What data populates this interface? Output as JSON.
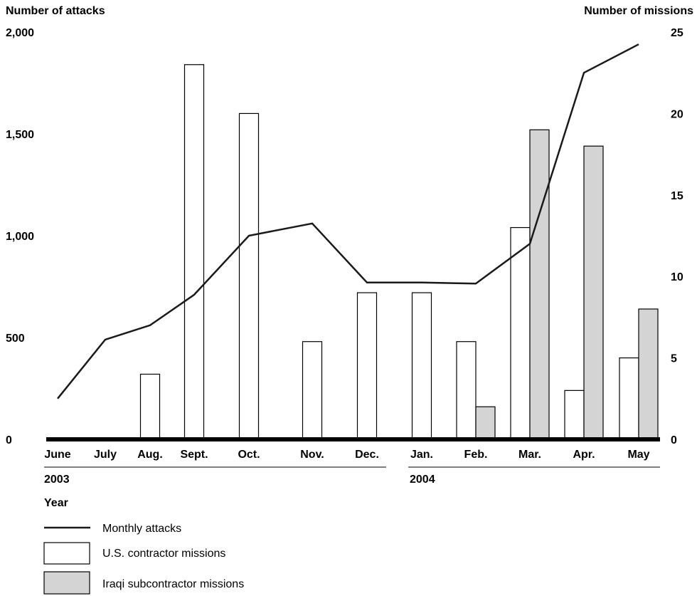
{
  "chart_data": {
    "type": "bar",
    "left_axis_title": "Number of attacks",
    "right_axis_title": "Number of missions",
    "left_ticks": [
      "0",
      "500",
      "1,000",
      "1,500",
      "2,000"
    ],
    "left_tick_values": [
      0,
      500,
      1000,
      1500,
      2000
    ],
    "right_ticks": [
      "0",
      "5",
      "10",
      "15",
      "20",
      "25"
    ],
    "right_tick_values": [
      0,
      5,
      10,
      15,
      20,
      25
    ],
    "ylim_left": [
      0,
      2000
    ],
    "ylim_right": [
      0,
      25
    ],
    "categories": [
      "June",
      "July",
      "Aug.",
      "Sept.",
      "Oct.",
      "Nov.",
      "Dec.",
      "Jan.",
      "Feb.",
      "Mar.",
      "Apr.",
      "May"
    ],
    "years": [
      "2003",
      "2004"
    ],
    "year_axis_label": "Year",
    "series": [
      {
        "name": "Monthly attacks",
        "kind": "line",
        "axis": "left",
        "values": [
          200,
          490,
          560,
          710,
          1000,
          1060,
          770,
          770,
          765,
          960,
          1800,
          1940
        ]
      },
      {
        "name": "U.S. contractor missions",
        "kind": "bar",
        "axis": "right",
        "values": [
          0,
          0,
          4,
          23,
          20,
          6,
          9,
          9,
          6,
          13,
          3,
          5
        ]
      },
      {
        "name": "Iraqi subcontractor missions",
        "kind": "bar",
        "axis": "right",
        "values": [
          0,
          0,
          0,
          0,
          0,
          0,
          0,
          0,
          2,
          19,
          18,
          8
        ]
      }
    ],
    "colors": {
      "us_bar": "#ffffff",
      "iraqi_bar": "#d4d4d4",
      "line": "#1a1a1a"
    },
    "legend_position": "bottom-left",
    "grid": false
  }
}
